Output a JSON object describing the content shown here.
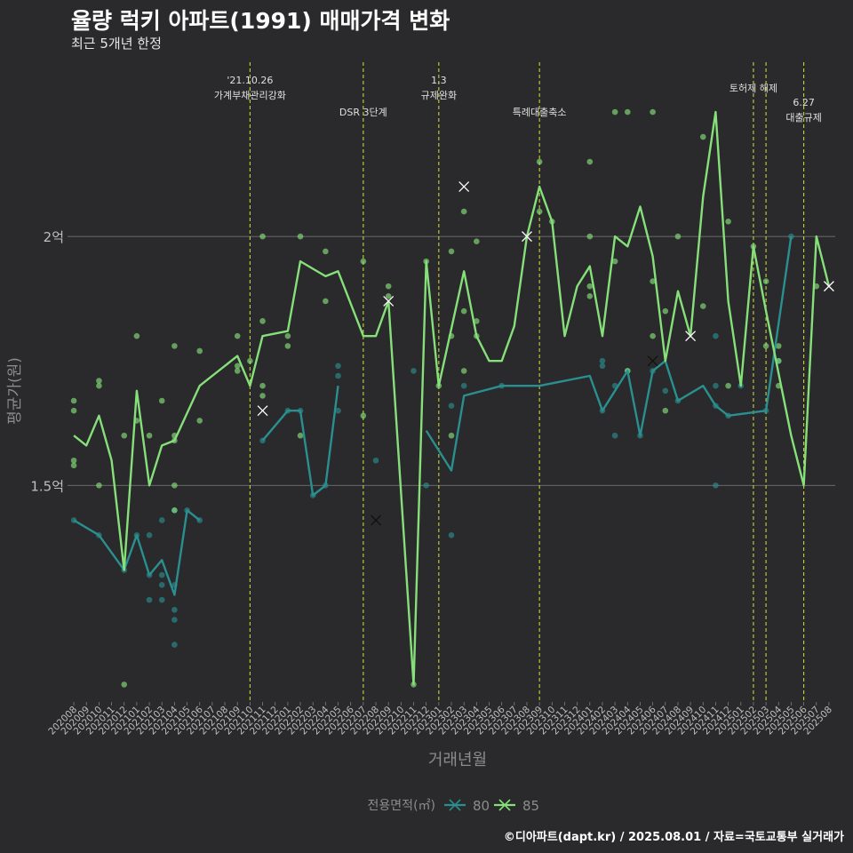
{
  "title": "율량 럭키 아파트(1991) 매매가격 변화",
  "subtitle": "최근 5개년 한정",
  "caption": "©디아파트(dapt.kr) / 2025.08.01 / 자료=국토교통부 실거래가",
  "colors": {
    "background": "#2a292b",
    "grid": "#7f7f7f",
    "event_line": "#c8d23c",
    "series_80": "#2a8f8f",
    "series_85": "#86e07a",
    "axis_text": "#bfbfbf",
    "axis_title": "#8c8c8c"
  },
  "chart_data": {
    "type": "line",
    "xlabel": "거래년월",
    "ylabel": "평균가(원)",
    "y_ticks": [
      {
        "value": 15000,
        "label": "1.5억"
      },
      {
        "value": 20000,
        "label": "2억"
      }
    ],
    "ylim": [
      10650,
      23500
    ],
    "grid": true,
    "x_categories": [
      "202008",
      "202009",
      "202010",
      "202011",
      "202012",
      "202101",
      "202102",
      "202103",
      "202104",
      "202105",
      "202106",
      "202107",
      "202108",
      "202109",
      "202110",
      "202111",
      "202112",
      "202201",
      "202202",
      "202203",
      "202204",
      "202205",
      "202206",
      "202207",
      "202208",
      "202209",
      "202210",
      "202211",
      "202212",
      "202301",
      "202302",
      "202303",
      "202304",
      "202305",
      "202306",
      "202307",
      "202308",
      "202309",
      "202310",
      "202311",
      "202312",
      "202401",
      "202402",
      "202403",
      "202404",
      "202405",
      "202406",
      "202407",
      "202408",
      "202409",
      "202410",
      "202411",
      "202412",
      "202501",
      "202502",
      "202503",
      "202504",
      "202505",
      "202506",
      "202507",
      "202508"
    ],
    "legend": {
      "title": "전용면적(㎡)",
      "position": "bottom"
    },
    "events": [
      {
        "x": "202110",
        "label": "'21.10.26\n가계부채관리강화"
      },
      {
        "x": "202207",
        "label": "DSR 3단계"
      },
      {
        "x": "202301",
        "label": "1.3\n규제완화"
      },
      {
        "x": "202309",
        "label": "특례대출축소"
      },
      {
        "x": "202502",
        "label": "토허제 해제"
      },
      {
        "x": "202503",
        "label": ""
      },
      {
        "x": "202506",
        "label": "6.27\n대출규제"
      }
    ],
    "series": [
      {
        "name": "80",
        "line": [
          [
            "202008",
            14300
          ],
          [
            "202010",
            14000
          ],
          [
            "202012",
            13300
          ],
          [
            "202101",
            14000
          ],
          [
            "202102",
            13200
          ],
          [
            "202103",
            13500
          ],
          [
            "202104",
            12800
          ],
          [
            "202105",
            14500
          ],
          [
            "202106",
            14300
          ],
          null,
          [
            "202111",
            15900
          ],
          [
            "202201",
            16500
          ],
          [
            "202202",
            16500
          ],
          [
            "202203",
            14800
          ],
          [
            "202204",
            15000
          ],
          [
            "202205",
            17000
          ],
          null,
          [
            "202212",
            16100
          ],
          [
            "202302",
            15300
          ],
          [
            "202303",
            16800
          ],
          [
            "202306",
            17000
          ],
          [
            "202309",
            17000
          ],
          [
            "202401",
            17200
          ],
          [
            "202402",
            16500
          ],
          [
            "202404",
            17300
          ],
          [
            "202405",
            16000
          ],
          [
            "202406",
            17300
          ],
          [
            "202407",
            17500
          ],
          [
            "202408",
            16700
          ],
          [
            "202410",
            17000
          ],
          [
            "202411",
            16600
          ],
          [
            "202412",
            16400
          ],
          [
            "202503",
            16500
          ],
          [
            "202505",
            20000
          ]
        ],
        "points": [
          [
            "202008",
            14300
          ],
          [
            "202010",
            14000
          ],
          [
            "202012",
            13300
          ],
          [
            "202101",
            14000
          ],
          [
            "202102",
            14000
          ],
          [
            "202102",
            13200
          ],
          [
            "202102",
            12700
          ],
          [
            "202103",
            14300
          ],
          [
            "202103",
            13200
          ],
          [
            "202103",
            13000
          ],
          [
            "202103",
            12700
          ],
          [
            "202104",
            13000
          ],
          [
            "202104",
            12500
          ],
          [
            "202104",
            12300
          ],
          [
            "202104",
            11800
          ],
          [
            "202104",
            14500
          ],
          [
            "202105",
            14500
          ],
          [
            "202106",
            14300
          ],
          [
            "202111",
            15900
          ],
          [
            "202201",
            16500
          ],
          [
            "202202",
            16500
          ],
          [
            "202203",
            14800
          ],
          [
            "202204",
            15000
          ],
          [
            "202205",
            17400
          ],
          [
            "202205",
            17200
          ],
          [
            "202205",
            16500
          ],
          [
            "202208",
            15500
          ],
          [
            "202211",
            17300
          ],
          [
            "202212",
            15000
          ],
          [
            "202302",
            16600
          ],
          [
            "202302",
            14000
          ],
          [
            "202303",
            17000
          ],
          [
            "202306",
            17000
          ],
          [
            "202402",
            17500
          ],
          [
            "202402",
            17400
          ],
          [
            "202402",
            16500
          ],
          [
            "202403",
            17000
          ],
          [
            "202403",
            16000
          ],
          [
            "202404",
            17300
          ],
          [
            "202405",
            16000
          ],
          [
            "202406",
            17300
          ],
          [
            "202407",
            16900
          ],
          [
            "202408",
            16700
          ],
          [
            "202411",
            17000
          ],
          [
            "202411",
            18000
          ],
          [
            "202411",
            16600
          ],
          [
            "202411",
            15000
          ],
          [
            "202412",
            16400
          ],
          [
            "202501",
            17000
          ],
          [
            "202503",
            16500
          ],
          [
            "202504",
            17500
          ],
          [
            "202505",
            20000
          ]
        ],
        "crosses": [
          [
            "202208",
            14300
          ],
          [
            "202406",
            17500
          ]
        ]
      },
      {
        "name": "85",
        "line": [
          [
            "202008",
            16000
          ],
          [
            "202009",
            15800
          ],
          [
            "202010",
            16400
          ],
          [
            "202011",
            15500
          ],
          [
            "202012",
            13300
          ],
          [
            "202101",
            16900
          ],
          [
            "202102",
            15000
          ],
          [
            "202103",
            15800
          ],
          [
            "202104",
            15900
          ],
          [
            "202106",
            17000
          ],
          [
            "202109",
            17600
          ],
          [
            "202110",
            17000
          ],
          [
            "202111",
            18000
          ],
          [
            "202201",
            18100
          ],
          [
            "202202",
            19500
          ],
          [
            "202204",
            19200
          ],
          [
            "202205",
            19300
          ],
          [
            "202207",
            18000
          ],
          [
            "202208",
            18000
          ],
          [
            "202209",
            18700
          ],
          [
            "202211",
            11000
          ],
          [
            "202212",
            19500
          ],
          [
            "202301",
            17000
          ],
          [
            "202303",
            19300
          ],
          [
            "202304",
            18000
          ],
          [
            "202305",
            17500
          ],
          [
            "202306",
            17500
          ],
          [
            "202307",
            18200
          ],
          [
            "202308",
            20000
          ],
          [
            "202309",
            21000
          ],
          [
            "202310",
            20300
          ],
          [
            "202311",
            18000
          ],
          [
            "202312",
            19000
          ],
          [
            "202401",
            19400
          ],
          [
            "202402",
            18000
          ],
          [
            "202403",
            20000
          ],
          [
            "202404",
            19800
          ],
          [
            "202405",
            20600
          ],
          [
            "202406",
            19600
          ],
          [
            "202407",
            17500
          ],
          [
            "202408",
            18900
          ],
          [
            "202409",
            18000
          ],
          [
            "202410",
            20800
          ],
          [
            "202411",
            22500
          ],
          [
            "202412",
            18700
          ],
          [
            "202501",
            17000
          ],
          [
            "202502",
            19800
          ],
          [
            "202503",
            18500
          ],
          [
            "202505",
            16000
          ],
          [
            "202506",
            15000
          ],
          [
            "202507",
            20000
          ],
          [
            "202508",
            19000
          ]
        ],
        "points": [
          [
            "202008",
            16700
          ],
          [
            "202008",
            16500
          ],
          [
            "202008",
            15500
          ],
          [
            "202008",
            15400
          ],
          [
            "202010",
            17100
          ],
          [
            "202010",
            17000
          ],
          [
            "202010",
            15000
          ],
          [
            "202012",
            16000
          ],
          [
            "202012",
            11000
          ],
          [
            "202101",
            18000
          ],
          [
            "202101",
            16300
          ],
          [
            "202102",
            16000
          ],
          [
            "202103",
            16700
          ],
          [
            "202104",
            17800
          ],
          [
            "202104",
            16000
          ],
          [
            "202104",
            15900
          ],
          [
            "202104",
            15000
          ],
          [
            "202104",
            14500
          ],
          [
            "202106",
            17700
          ],
          [
            "202106",
            16300
          ],
          [
            "202109",
            18000
          ],
          [
            "202109",
            17400
          ],
          [
            "202109",
            17300
          ],
          [
            "202110",
            17500
          ],
          [
            "202111",
            20000
          ],
          [
            "202111",
            18300
          ],
          [
            "202111",
            17000
          ],
          [
            "202111",
            16800
          ],
          [
            "202201",
            18000
          ],
          [
            "202201",
            17800
          ],
          [
            "202202",
            20000
          ],
          [
            "202202",
            16000
          ],
          [
            "202204",
            19700
          ],
          [
            "202204",
            18700
          ],
          [
            "202207",
            19500
          ],
          [
            "202207",
            16400
          ],
          [
            "202209",
            19000
          ],
          [
            "202209",
            18800
          ],
          [
            "202211",
            11000
          ],
          [
            "202212",
            19500
          ],
          [
            "202301",
            17000
          ],
          [
            "202302",
            19700
          ],
          [
            "202302",
            18000
          ],
          [
            "202302",
            16000
          ],
          [
            "202303",
            20500
          ],
          [
            "202303",
            18500
          ],
          [
            "202303",
            17300
          ],
          [
            "202304",
            19900
          ],
          [
            "202304",
            18300
          ],
          [
            "202304",
            18000
          ],
          [
            "202309",
            21500
          ],
          [
            "202309",
            20500
          ],
          [
            "202310",
            20300
          ],
          [
            "202401",
            21500
          ],
          [
            "202401",
            20000
          ],
          [
            "202401",
            19000
          ],
          [
            "202401",
            18800
          ],
          [
            "202403",
            22500
          ],
          [
            "202403",
            19500
          ],
          [
            "202404",
            22500
          ],
          [
            "202404",
            17300
          ],
          [
            "202406",
            22500
          ],
          [
            "202406",
            19100
          ],
          [
            "202406",
            18000
          ],
          [
            "202407",
            18500
          ],
          [
            "202407",
            16500
          ],
          [
            "202408",
            20000
          ],
          [
            "202410",
            22000
          ],
          [
            "202410",
            18600
          ],
          [
            "202412",
            20300
          ],
          [
            "202412",
            17000
          ],
          [
            "202502",
            19800
          ],
          [
            "202503",
            19100
          ],
          [
            "202503",
            17800
          ],
          [
            "202504",
            17800
          ],
          [
            "202504",
            17500
          ],
          [
            "202504",
            17000
          ],
          [
            "202507",
            19000
          ]
        ],
        "crosses": [
          [
            "202111",
            16500
          ],
          [
            "202209",
            18700
          ],
          [
            "202303",
            21000
          ],
          [
            "202308",
            20000
          ],
          [
            "202409",
            18000
          ],
          [
            "202508",
            19000
          ]
        ]
      }
    ]
  }
}
